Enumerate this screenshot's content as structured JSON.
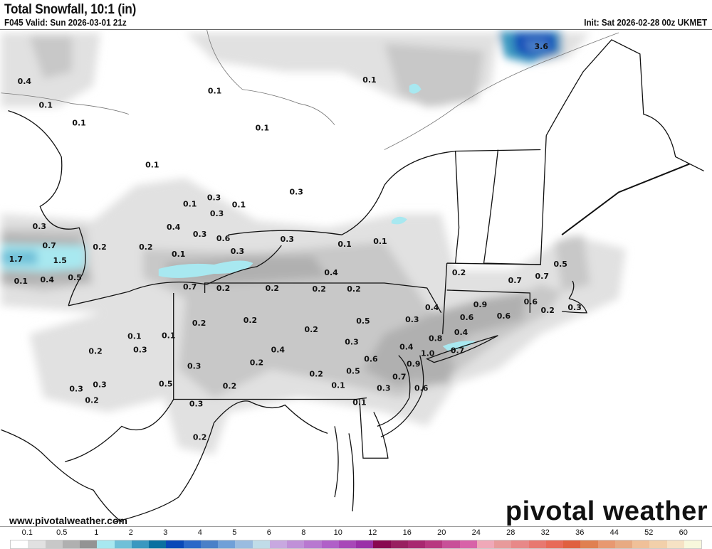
{
  "header": {
    "title": "Total Snowfall, 10:1 (in)",
    "valid": "F045 Valid: Sun 2026-03-01 21z",
    "init": "Init: Sat 2026-02-28 00z UKMET"
  },
  "footer": {
    "url": "www.pivotalweather.com",
    "logo": "pivotal weather"
  },
  "colorbar": {
    "labels": [
      "0.1",
      "0.5",
      "1",
      "2",
      "3",
      "4",
      "5",
      "6",
      "8",
      "10",
      "12",
      "16",
      "20",
      "24",
      "28",
      "32",
      "36",
      "44",
      "52",
      "60"
    ],
    "colors": [
      "#ffffff",
      "#e1e1e1",
      "#c8c8c8",
      "#b0b0b0",
      "#939393",
      "#a8e8f0",
      "#70c0d8",
      "#3a98c0",
      "#0a70a0",
      "#0848b8",
      "#2a68c8",
      "#4a80c8",
      "#70a0d8",
      "#9abce0",
      "#c0dce8",
      "#c8a8e0",
      "#c090d8",
      "#b878d0",
      "#b060c8",
      "#a848b8",
      "#9a30a8",
      "#880850",
      "#982060",
      "#a82870",
      "#b83880",
      "#c85098",
      "#d862a8",
      "#f0a8b8",
      "#e89a9a",
      "#e88888",
      "#e87870",
      "#e86a58",
      "#e06040",
      "#e08050",
      "#e89870",
      "#e8aa82",
      "#f0c098",
      "#f2d0aa",
      "#f6e2c4",
      "#f8f8dc"
    ]
  },
  "map": {
    "shade_colors": {
      "light": "#e1e1e1",
      "mid": "#c8c8c8",
      "dark": "#b0b0b0",
      "darker": "#939393",
      "cyan": "#a8e8f0",
      "blue1": "#3a98c0",
      "blue2": "#0848b8",
      "blue3": "#4a80c8"
    },
    "border_color": "#111111",
    "county_color": "#9a9a9a",
    "labels": [
      "3.6",
      "0.4",
      "0.1",
      "0.1",
      "0.1",
      "0.1",
      "0.1",
      "0.1",
      "0.3",
      "0.1",
      "0.3",
      "0.1",
      "0.3",
      "0.4",
      "0.3",
      "0.6",
      "0.3",
      "0.7",
      "0.2",
      "0.2",
      "0.1",
      "0.3",
      "0.3",
      "0.1",
      "0.1",
      "1.7",
      "1.5",
      "0.1",
      "0.4",
      "0.5",
      "0.7",
      "0.2",
      "0.2",
      "0.2",
      "0.2",
      "0.4",
      "0.2",
      "0.7",
      "0.5",
      "0.7",
      "0.4",
      "0.9",
      "0.6",
      "0.6",
      "0.6",
      "0.2",
      "0.3",
      "0.3",
      "0.5",
      "0.2",
      "0.2",
      "0.2",
      "0.1",
      "0.1",
      "0.3",
      "0.2",
      "0.4",
      "0.3",
      "0.8",
      "0.4",
      "0.7",
      "1.0",
      "0.4",
      "0.6",
      "0.9",
      "0.2",
      "0.3",
      "0.5",
      "0.2",
      "0.7",
      "0.5",
      "0.1",
      "0.2",
      "0.3",
      "0.3",
      "0.2",
      "0.3",
      "0.6",
      "0.1",
      "0.3",
      "0.2"
    ]
  }
}
